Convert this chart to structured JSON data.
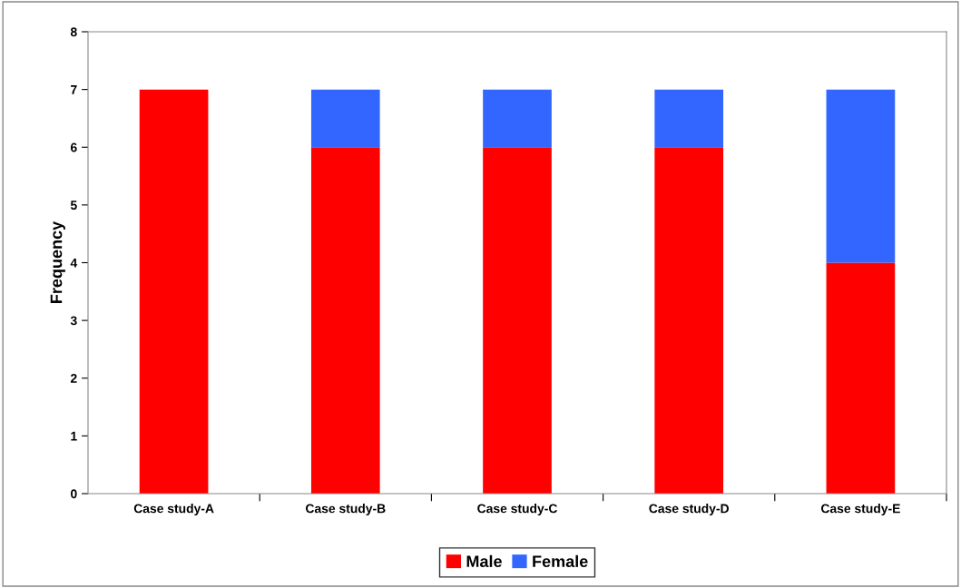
{
  "chart_data": {
    "type": "bar",
    "stacked": true,
    "ylabel": "Frequency",
    "categories": [
      "Case study-A",
      "Case study-B",
      "Case study-C",
      "Case study-D",
      "Case study-E"
    ],
    "series": [
      {
        "name": "Male",
        "color": "#ff0000",
        "values": [
          7,
          6,
          6,
          6,
          4
        ]
      },
      {
        "name": "Female",
        "color": "#3366ff",
        "values": [
          0,
          1,
          1,
          1,
          3
        ]
      }
    ],
    "ylim": [
      0,
      8
    ],
    "yticks": [
      0,
      1,
      2,
      3,
      4,
      5,
      6,
      7,
      8
    ],
    "grid": false,
    "legend": "bottom"
  }
}
